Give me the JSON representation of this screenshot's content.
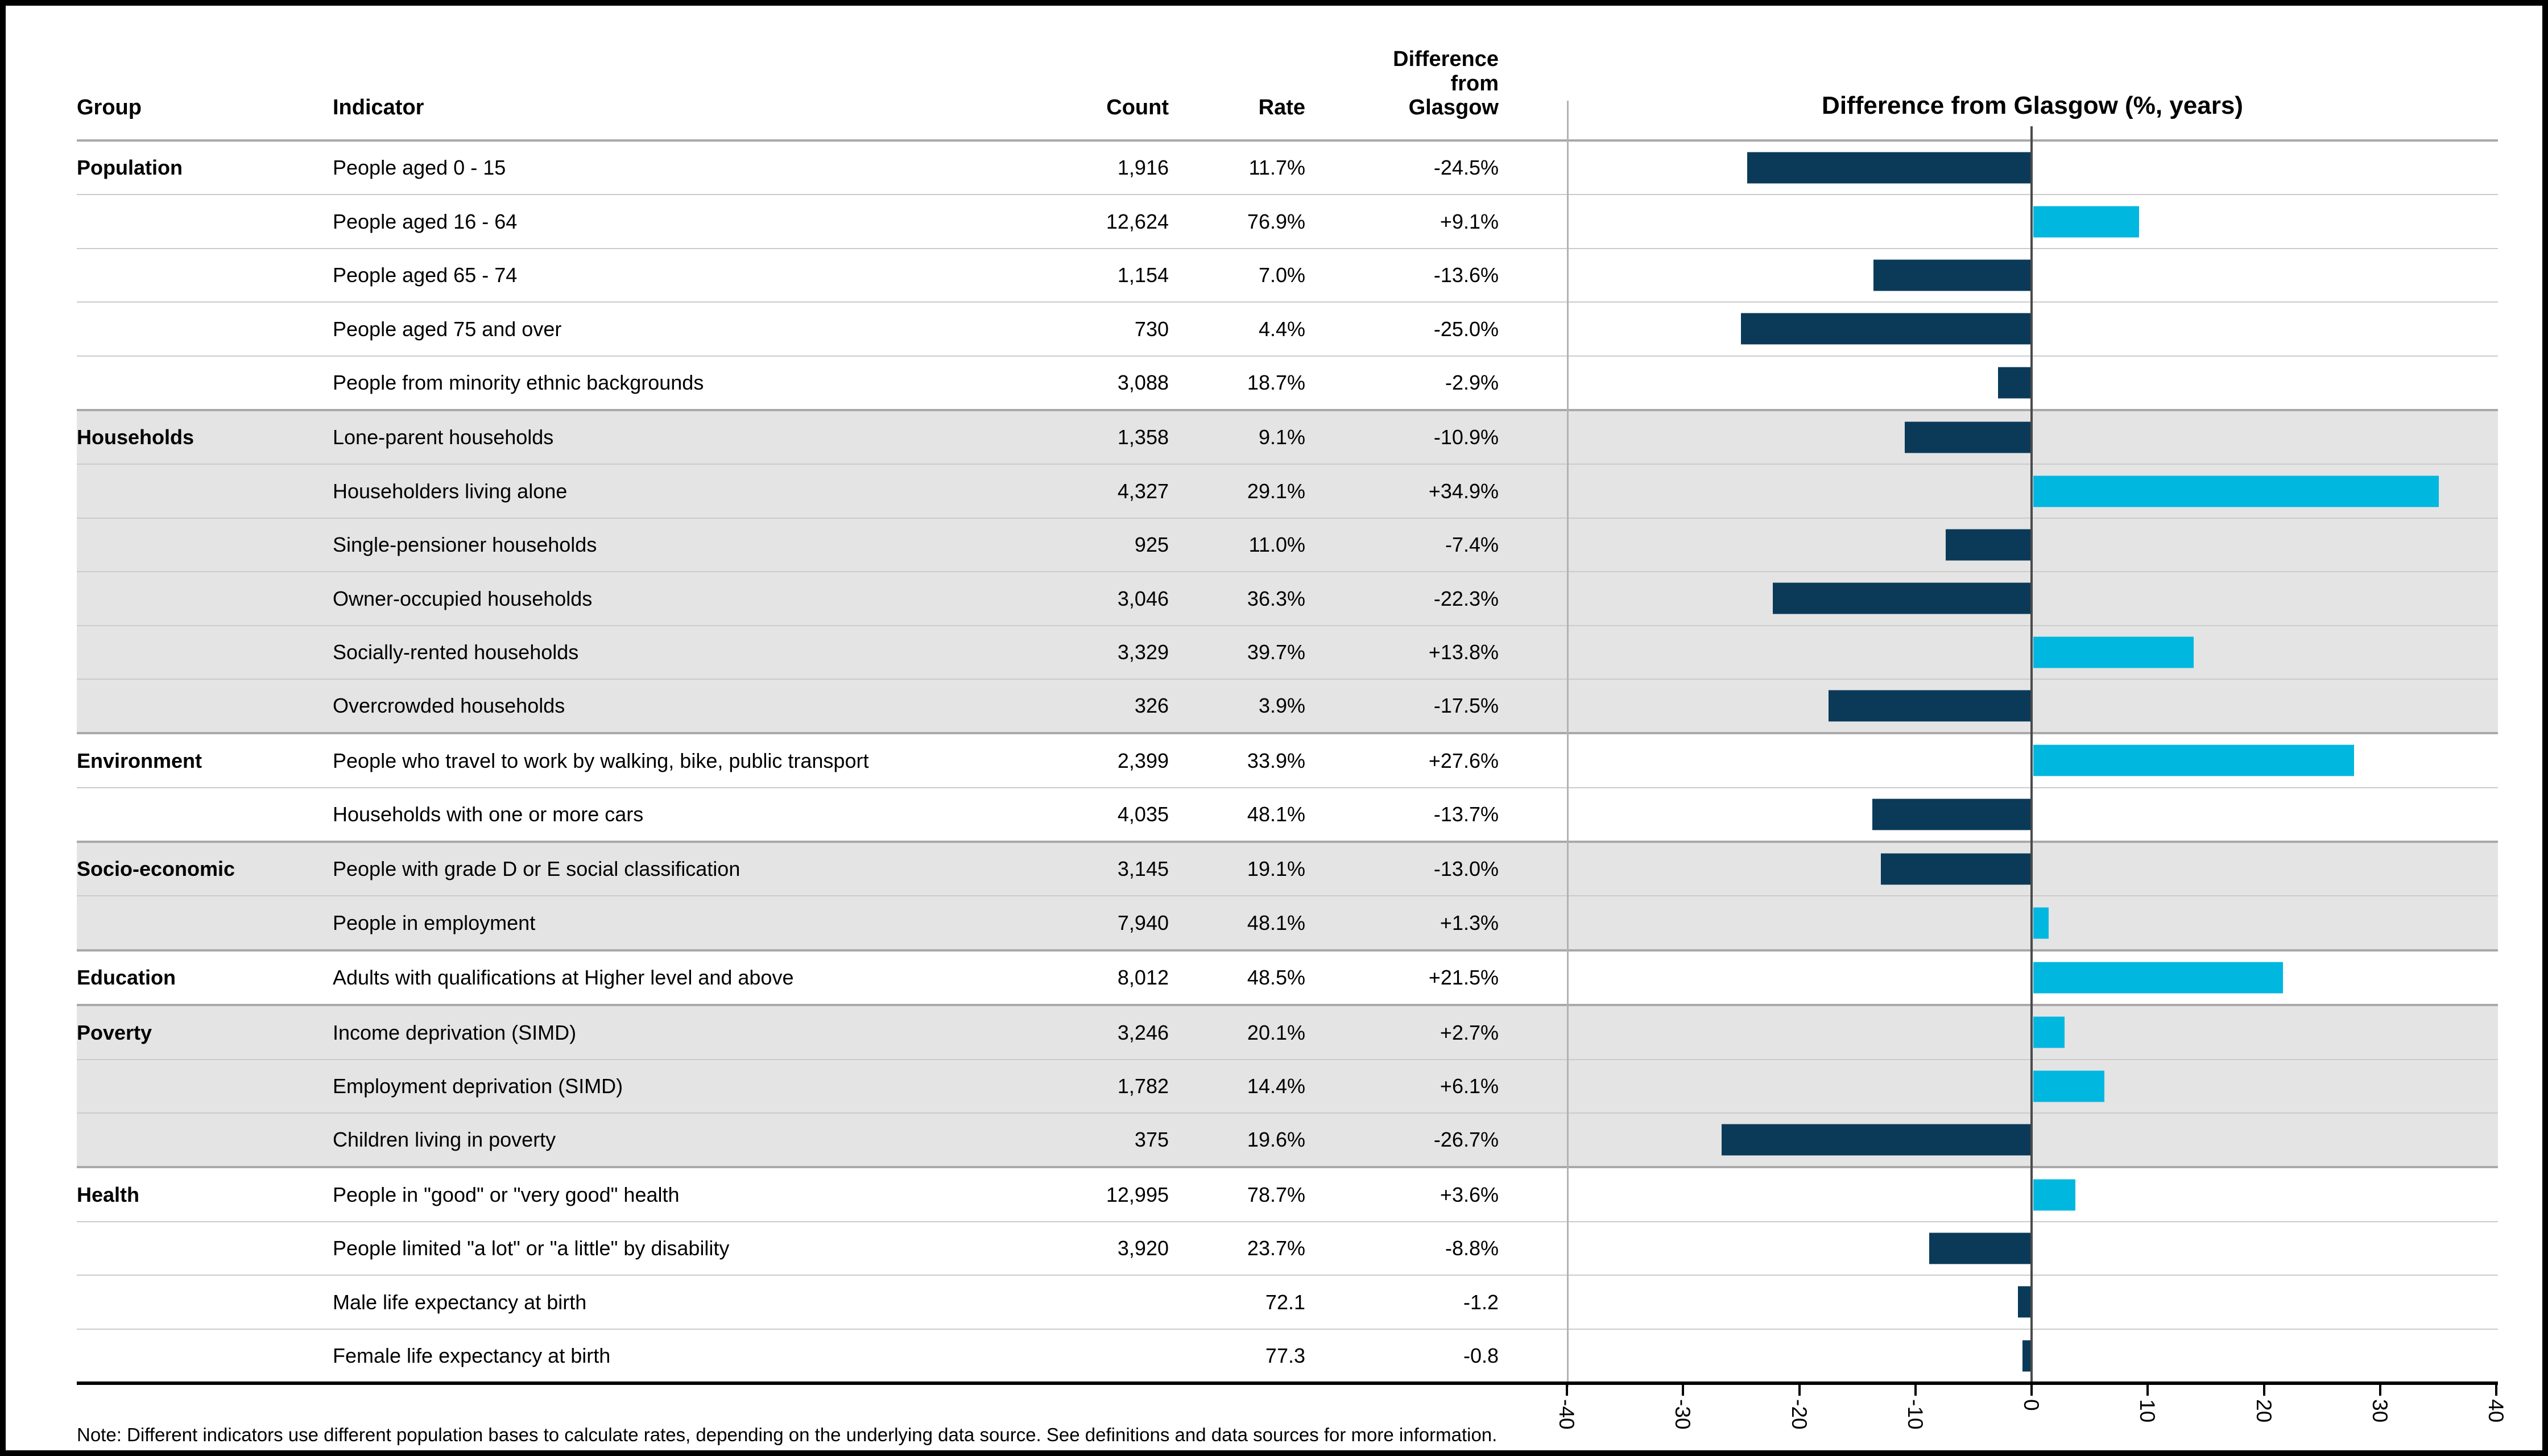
{
  "table": {
    "headers": {
      "group": "Group",
      "indicator": "Indicator",
      "count": "Count",
      "rate": "Rate",
      "diff": "Difference\nfrom\nGlasgow"
    },
    "groups": [
      {
        "name": "Population",
        "shaded": false,
        "rows": [
          {
            "indicator": "People aged 0 - 15",
            "count": "1,916",
            "rate": "11.7%",
            "diff": "-24.5%",
            "value": -24.5
          },
          {
            "indicator": "People aged 16 - 64",
            "count": "12,624",
            "rate": "76.9%",
            "diff": "+9.1%",
            "value": 9.1
          },
          {
            "indicator": "People aged 65 - 74",
            "count": "1,154",
            "rate": "7.0%",
            "diff": "-13.6%",
            "value": -13.6
          },
          {
            "indicator": "People aged 75 and over",
            "count": "730",
            "rate": "4.4%",
            "diff": "-25.0%",
            "value": -25.0
          },
          {
            "indicator": "People from minority ethnic backgrounds",
            "count": "3,088",
            "rate": "18.7%",
            "diff": "-2.9%",
            "value": -2.9
          }
        ]
      },
      {
        "name": "Households",
        "shaded": true,
        "rows": [
          {
            "indicator": "Lone-parent households",
            "count": "1,358",
            "rate": "9.1%",
            "diff": "-10.9%",
            "value": -10.9
          },
          {
            "indicator": "Householders living alone",
            "count": "4,327",
            "rate": "29.1%",
            "diff": "+34.9%",
            "value": 34.9
          },
          {
            "indicator": "Single-pensioner households",
            "count": "925",
            "rate": "11.0%",
            "diff": "-7.4%",
            "value": -7.4
          },
          {
            "indicator": "Owner-occupied households",
            "count": "3,046",
            "rate": "36.3%",
            "diff": "-22.3%",
            "value": -22.3
          },
          {
            "indicator": "Socially-rented households",
            "count": "3,329",
            "rate": "39.7%",
            "diff": "+13.8%",
            "value": 13.8
          },
          {
            "indicator": "Overcrowded households",
            "count": "326",
            "rate": "3.9%",
            "diff": "-17.5%",
            "value": -17.5
          }
        ]
      },
      {
        "name": "Environment",
        "shaded": false,
        "rows": [
          {
            "indicator": "People who travel to work by walking, bike, public transport",
            "count": "2,399",
            "rate": "33.9%",
            "diff": "+27.6%",
            "value": 27.6
          },
          {
            "indicator": "Households with one or more cars",
            "count": "4,035",
            "rate": "48.1%",
            "diff": "-13.7%",
            "value": -13.7
          }
        ]
      },
      {
        "name": "Socio-economic",
        "shaded": true,
        "rows": [
          {
            "indicator": "People with grade D or E social classification",
            "count": "3,145",
            "rate": "19.1%",
            "diff": "-13.0%",
            "value": -13.0
          },
          {
            "indicator": "People in employment",
            "count": "7,940",
            "rate": "48.1%",
            "diff": "+1.3%",
            "value": 1.3
          }
        ]
      },
      {
        "name": "Education",
        "shaded": false,
        "rows": [
          {
            "indicator": "Adults with qualifications at Higher level and above",
            "count": "8,012",
            "rate": "48.5%",
            "diff": "+21.5%",
            "value": 21.5
          }
        ]
      },
      {
        "name": "Poverty",
        "shaded": true,
        "rows": [
          {
            "indicator": "Income deprivation (SIMD)",
            "count": "3,246",
            "rate": "20.1%",
            "diff": "+2.7%",
            "value": 2.7
          },
          {
            "indicator": "Employment deprivation (SIMD)",
            "count": "1,782",
            "rate": "14.4%",
            "diff": "+6.1%",
            "value": 6.1
          },
          {
            "indicator": "Children living in poverty",
            "count": "375",
            "rate": "19.6%",
            "diff": "-26.7%",
            "value": -26.7
          }
        ]
      },
      {
        "name": "Health",
        "shaded": false,
        "rows": [
          {
            "indicator": "People in \"good\" or \"very good\" health",
            "count": "12,995",
            "rate": "78.7%",
            "diff": "+3.6%",
            "value": 3.6
          },
          {
            "indicator": "People limited \"a lot\" or \"a little\" by disability",
            "count": "3,920",
            "rate": "23.7%",
            "diff": "-8.8%",
            "value": -8.8
          },
          {
            "indicator": "Male life expectancy at birth",
            "count": "",
            "rate": "72.1",
            "diff": "-1.2",
            "value": -1.2
          },
          {
            "indicator": "Female life expectancy at birth",
            "count": "",
            "rate": "77.3",
            "diff": "-0.8",
            "value": -0.8
          }
        ]
      }
    ]
  },
  "chart": {
    "title": "Difference from Glasgow (%, years)",
    "axis_min": -40,
    "axis_max": 40,
    "ticks": [
      "-40",
      "-30",
      "-20",
      "-10",
      "0",
      "10",
      "20",
      "30",
      "40"
    ],
    "colors": {
      "negative_bar": "#0a3a58",
      "positive_bar": "#00b7df",
      "shaded_band": "#e4e4e4"
    }
  },
  "chart_data": {
    "type": "bar",
    "orientation": "horizontal",
    "title": "Difference from Glasgow (%, years)",
    "xlabel": "Difference from Glasgow (%, years)",
    "xlim": [
      -40,
      40
    ],
    "x_ticks": [
      -40,
      -30,
      -20,
      -10,
      0,
      10,
      20,
      30,
      40
    ],
    "grid": false,
    "categories": [
      "People aged 0 - 15",
      "People aged 16 - 64",
      "People aged 65 - 74",
      "People aged 75 and over",
      "People from minority ethnic backgrounds",
      "Lone-parent households",
      "Householders living alone",
      "Single-pensioner households",
      "Owner-occupied households",
      "Socially-rented households",
      "Overcrowded households",
      "People who travel to work by walking, bike, public transport",
      "Households with one or more cars",
      "People with grade D or E social classification",
      "People in employment",
      "Adults with qualifications at Higher level and above",
      "Income deprivation (SIMD)",
      "Employment deprivation (SIMD)",
      "Children living in poverty",
      "People in \"good\" or \"very good\" health",
      "People limited \"a lot\" or \"a little\" by disability",
      "Male life expectancy at birth",
      "Female life expectancy at birth"
    ],
    "values": [
      -24.5,
      9.1,
      -13.6,
      -25.0,
      -2.9,
      -10.9,
      34.9,
      -7.4,
      -22.3,
      13.8,
      -17.5,
      27.6,
      -13.7,
      -13.0,
      1.3,
      21.5,
      2.7,
      6.1,
      -26.7,
      3.6,
      -8.8,
      -1.2,
      -0.8
    ]
  },
  "footnote": "Note: Different indicators use different population bases to calculate rates, depending on the underlying data source. See definitions and data sources for more information."
}
